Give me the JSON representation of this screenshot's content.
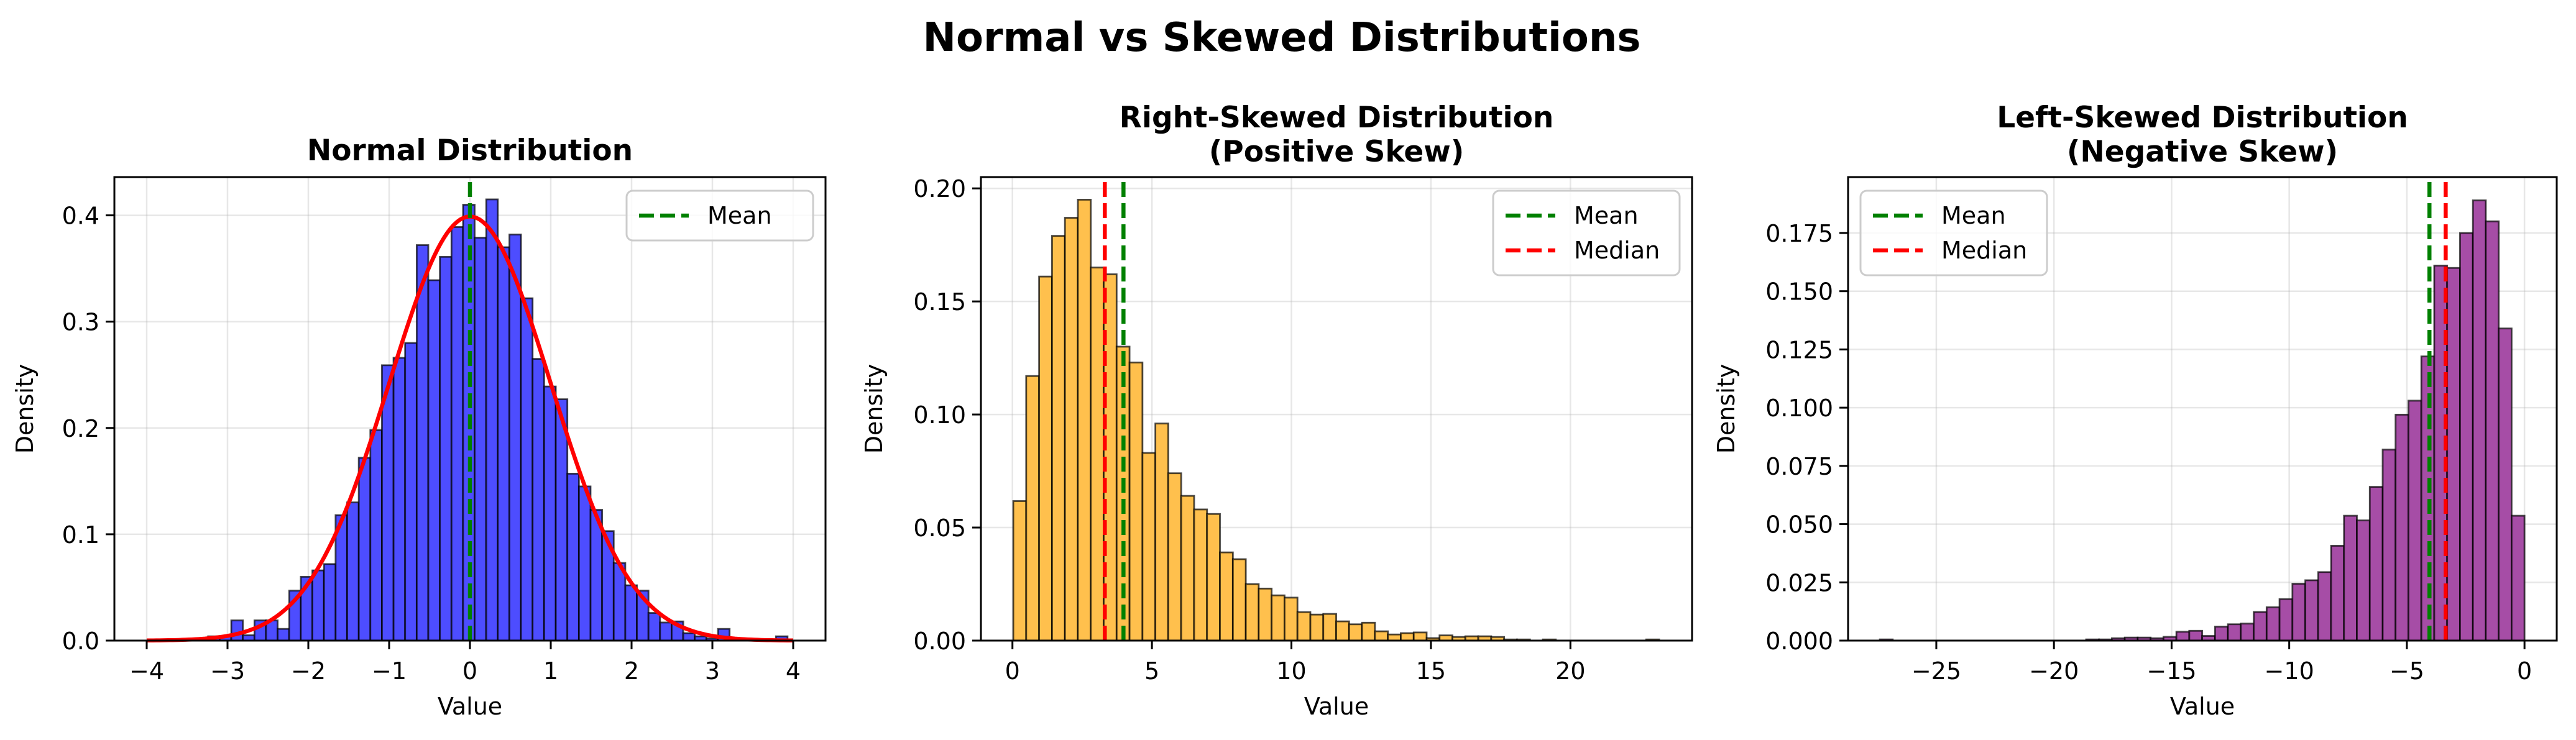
{
  "suptitle": "Normal vs Skewed Distributions",
  "chart_data": [
    {
      "type": "bar",
      "subtype": "histogram",
      "title_lines": [
        "Normal Distribution"
      ],
      "xlabel": "Value",
      "ylabel": "Density",
      "xlim": [
        -4.4,
        4.4
      ],
      "ylim": [
        0,
        0.436
      ],
      "xticks": [
        -4,
        -3,
        -2,
        -1,
        0,
        1,
        2,
        3,
        4
      ],
      "xtick_labels": [
        "−4",
        "−3",
        "−2",
        "−1",
        "0",
        "1",
        "2",
        "3",
        "4"
      ],
      "yticks": [
        0,
        0.1,
        0.2,
        0.3,
        0.4
      ],
      "ytick_labels": [
        "0.0",
        "0.1",
        "0.2",
        "0.3",
        "0.4"
      ],
      "grid": true,
      "bar_color": "#0000ff",
      "bin_start": -3.24,
      "bin_width": 0.1434,
      "densities": [
        0.004,
        0.004,
        0.019,
        0.005,
        0.019,
        0.019,
        0.011,
        0.047,
        0.06,
        0.066,
        0.072,
        0.118,
        0.13,
        0.172,
        0.198,
        0.259,
        0.266,
        0.28,
        0.372,
        0.339,
        0.361,
        0.389,
        0.41,
        0.379,
        0.415,
        0.37,
        0.382,
        0.322,
        0.265,
        0.239,
        0.227,
        0.157,
        0.145,
        0.123,
        0.103,
        0.073,
        0.052,
        0.047,
        0.026,
        0.017,
        0.018,
        0.007,
        0.004,
        0.002,
        0.011,
        0,
        0,
        0,
        0,
        0.004
      ],
      "curve": {
        "type": "normal-pdf",
        "mean": 0,
        "std": 1,
        "range": [
          -4,
          4
        ],
        "color": "#ff0000"
      },
      "vlines": [
        {
          "name": "Mean",
          "x": 0.0,
          "color": "#008000"
        }
      ],
      "legend": {
        "placement": "upper-right",
        "entries": [
          "Mean"
        ]
      }
    },
    {
      "type": "bar",
      "subtype": "histogram",
      "title_lines": [
        "Right-Skewed Distribution",
        "(Positive Skew)"
      ],
      "xlabel": "Value",
      "ylabel": "Density",
      "xlim": [
        -1.13,
        24.36
      ],
      "ylim": [
        0,
        0.205
      ],
      "xticks": [
        0,
        5,
        10,
        15,
        20
      ],
      "xtick_labels": [
        "0",
        "5",
        "10",
        "15",
        "20"
      ],
      "yticks": [
        0,
        0.05,
        0.1,
        0.15,
        0.2
      ],
      "ytick_labels": [
        "0.00",
        "0.05",
        "0.10",
        "0.15",
        "0.20"
      ],
      "grid": true,
      "bar_color": "#ffa500",
      "bin_start": 0.03,
      "bin_width": 0.463,
      "densities": [
        0.0617,
        0.117,
        0.161,
        0.179,
        0.187,
        0.195,
        0.165,
        0.162,
        0.13,
        0.123,
        0.083,
        0.096,
        0.074,
        0.064,
        0.058,
        0.056,
        0.039,
        0.036,
        0.025,
        0.023,
        0.02,
        0.019,
        0.0126,
        0.0115,
        0.0118,
        0.0085,
        0.0072,
        0.0079,
        0.0041,
        0.0027,
        0.0033,
        0.0036,
        0.0011,
        0.0023,
        0.0016,
        0.0019,
        0.0019,
        0.0016,
        0.0005,
        0.0005,
        0,
        0.0005,
        0,
        0,
        0,
        0,
        0,
        0,
        0,
        0.0005
      ],
      "vlines": [
        {
          "name": "Mean",
          "x": 3.98,
          "color": "#008000"
        },
        {
          "name": "Median",
          "x": 3.31,
          "color": "#ff0000"
        }
      ],
      "legend": {
        "placement": "upper-right",
        "entries": [
          "Mean",
          "Median"
        ]
      }
    },
    {
      "type": "bar",
      "subtype": "histogram",
      "title_lines": [
        "Left-Skewed Distribution",
        "(Negative Skew)"
      ],
      "xlabel": "Value",
      "ylabel": "Density",
      "xlim": [
        -28.75,
        1.37
      ],
      "ylim": [
        0,
        0.199
      ],
      "xticks": [
        -25,
        -20,
        -15,
        -10,
        -5,
        0
      ],
      "xtick_labels": [
        "−25",
        "−20",
        "−15",
        "−10",
        "−5",
        "0"
      ],
      "yticks": [
        0,
        0.025,
        0.05,
        0.075,
        0.1,
        0.125,
        0.15,
        0.175
      ],
      "ytick_labels": [
        "0.000",
        "0.025",
        "0.050",
        "0.075",
        "0.100",
        "0.125",
        "0.150",
        "0.175"
      ],
      "grid": true,
      "bar_color": "#800080",
      "bin_start": -27.4,
      "bin_width": 0.548,
      "densities": [
        0.0005,
        0,
        0,
        0,
        0,
        0,
        0,
        0,
        0,
        0,
        0,
        0,
        0,
        0,
        0,
        0,
        0.0005,
        0.0005,
        0.001,
        0.0013,
        0.0013,
        0.001,
        0.0016,
        0.0038,
        0.0042,
        0.002,
        0.006,
        0.007,
        0.0073,
        0.0123,
        0.0143,
        0.0178,
        0.0244,
        0.0259,
        0.0294,
        0.0407,
        0.0536,
        0.0516,
        0.066,
        0.082,
        0.097,
        0.103,
        0.122,
        0.161,
        0.16,
        0.175,
        0.189,
        0.18,
        0.134,
        0.0536
      ],
      "vlines": [
        {
          "name": "Mean",
          "x": -4.04,
          "color": "#008000"
        },
        {
          "name": "Median",
          "x": -3.35,
          "color": "#ff0000"
        }
      ],
      "legend": {
        "placement": "upper-left",
        "entries": [
          "Mean",
          "Median"
        ]
      }
    }
  ]
}
